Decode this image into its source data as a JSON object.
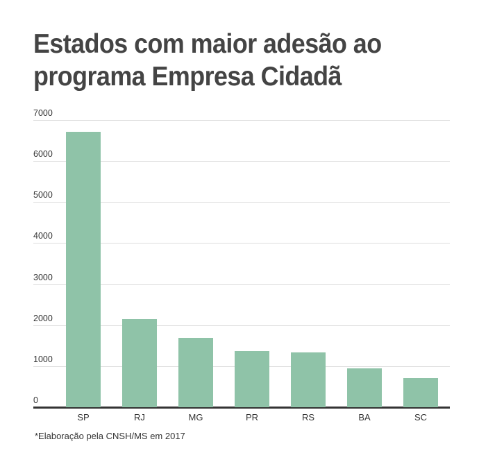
{
  "chart_data": {
    "type": "bar",
    "title": "Estados com maior adesão ao programa Empresa Cidadã",
    "categories": [
      "SP",
      "RJ",
      "MG",
      "PR",
      "RS",
      "BA",
      "SC"
    ],
    "values": [
      6710,
      2150,
      1690,
      1370,
      1340,
      950,
      710
    ],
    "xlabel": "",
    "ylabel": "",
    "ylim": [
      0,
      7000
    ],
    "yticks": [
      "0",
      "1000",
      "2000",
      "3000",
      "4000",
      "5000",
      "6000",
      "7000"
    ],
    "grid": true,
    "legend": null,
    "bar_color": "#8fc3a8",
    "footnote": "*Elaboração pela CNSH/MS em 2017"
  },
  "title": "Estados com maior adesão ao programa Empresa Cidadã",
  "footnote": "*Elaboração pela CNSH/MS em 2017"
}
